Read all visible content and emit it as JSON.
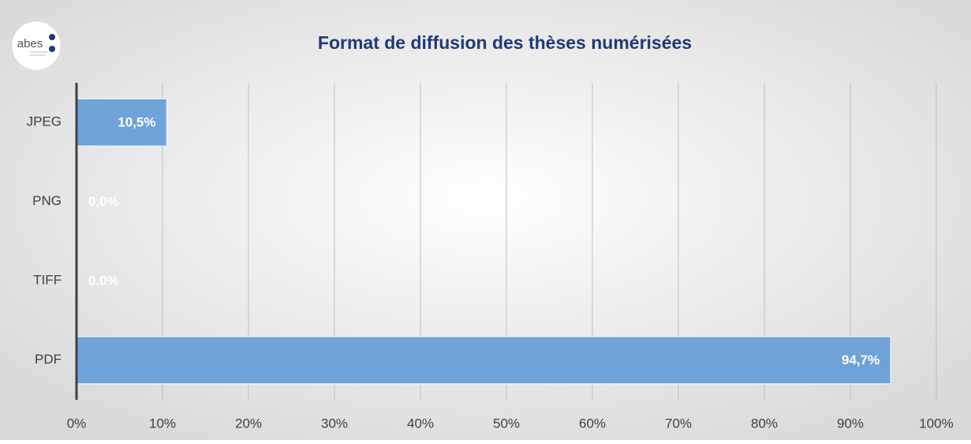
{
  "logo": "abes",
  "chart_data": {
    "type": "barh",
    "title": "Format de diffusion des thèses numérisées",
    "categories": [
      "JPEG",
      "PNG",
      "TIFF",
      "PDF"
    ],
    "values": [
      10.5,
      0,
      0,
      94.7
    ],
    "value_labels": [
      "10,5%",
      "0,0%",
      "0,0%",
      "94,7%"
    ],
    "color": "#6fa3d8",
    "xlim": [
      0,
      100
    ],
    "xticks": [
      {
        "value": 0,
        "label": "0%"
      },
      {
        "value": 10,
        "label": "10%"
      },
      {
        "value": 20,
        "label": "20%"
      },
      {
        "value": 30,
        "label": "30%"
      },
      {
        "value": 40,
        "label": "40%"
      },
      {
        "value": 50,
        "label": "50%"
      },
      {
        "value": 60,
        "label": "60%"
      },
      {
        "value": 70,
        "label": "70%"
      },
      {
        "value": 80,
        "label": "80%"
      },
      {
        "value": 90,
        "label": "90%"
      },
      {
        "value": 100,
        "label": "100%"
      }
    ],
    "grid": true
  }
}
